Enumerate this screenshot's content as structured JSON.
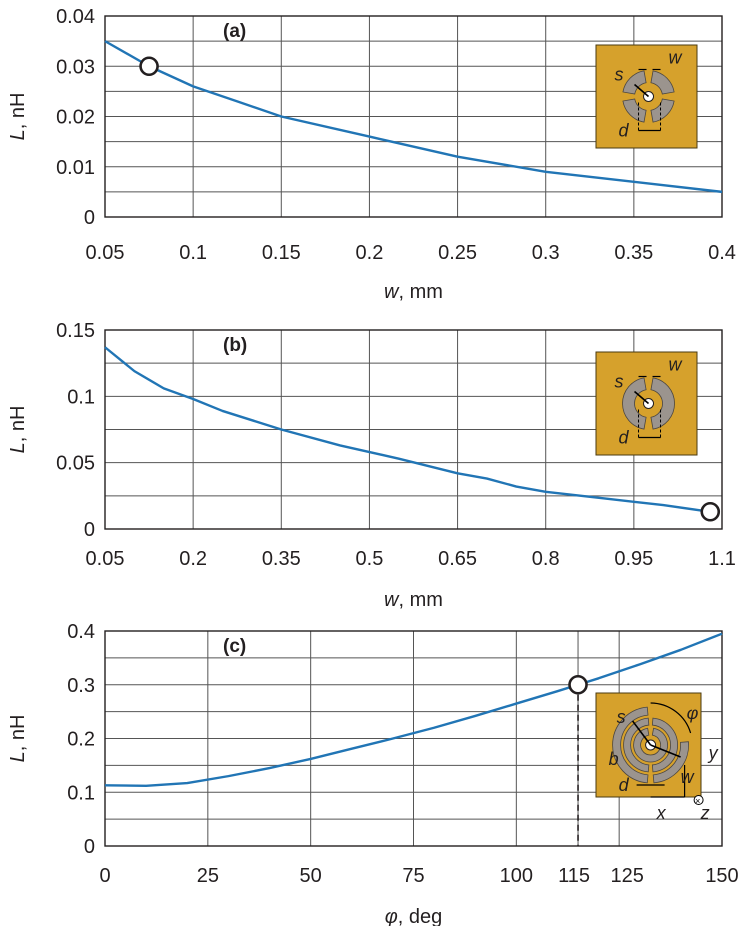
{
  "colors": {
    "line": "#2175b5",
    "grid": "#555555",
    "frame": "#231f20",
    "inset_bg": "#d6a12c",
    "inset_metal": "#9b948e"
  },
  "chart_data": [
    {
      "type": "line",
      "panel_label": "(a)",
      "xlabel_var": "w",
      "xlabel_unit": ", mm",
      "ylabel_var": "L",
      "ylabel_unit": ", nH",
      "xlim": [
        0.05,
        0.4
      ],
      "ylim": [
        0,
        0.04
      ],
      "x_ticks": [
        0.05,
        0.1,
        0.15,
        0.2,
        0.25,
        0.3,
        0.35,
        0.4
      ],
      "x_tick_labels": [
        "0.05",
        "0.1",
        "0.15",
        "0.2",
        "0.25",
        "0.3",
        "0.35",
        "0.4"
      ],
      "y_ticks": [
        0,
        0.01,
        0.02,
        0.03,
        0.04
      ],
      "y_tick_labels": [
        "0",
        "0.01",
        "0.02",
        "0.03",
        "0.04"
      ],
      "grid": true,
      "x": [
        0.05,
        0.075,
        0.1,
        0.125,
        0.15,
        0.2,
        0.25,
        0.3,
        0.35,
        0.4
      ],
      "y": [
        0.035,
        0.03,
        0.026,
        0.023,
        0.02,
        0.016,
        0.012,
        0.009,
        0.007,
        0.005
      ],
      "marker": {
        "x": 0.075,
        "y": 0.03
      },
      "inset_labels": {
        "s": "s",
        "w": "w",
        "d": "d"
      }
    },
    {
      "type": "line",
      "panel_label": "(b)",
      "xlabel_var": "w",
      "xlabel_unit": ", mm",
      "ylabel_var": "L",
      "ylabel_unit": ", nH",
      "xlim": [
        0.05,
        1.1
      ],
      "ylim": [
        0,
        0.15
      ],
      "x_ticks": [
        0.05,
        0.2,
        0.35,
        0.5,
        0.65,
        0.8,
        0.95,
        1.1
      ],
      "x_tick_labels": [
        "0.05",
        "0.2",
        "0.35",
        "0.5",
        "0.65",
        "0.8",
        "0.95",
        "1.1"
      ],
      "y_ticks": [
        0,
        0.05,
        0.1,
        0.15
      ],
      "y_tick_labels": [
        "0",
        "0.05",
        "0.1",
        "0.15"
      ],
      "grid": true,
      "x": [
        0.05,
        0.1,
        0.15,
        0.2,
        0.25,
        0.35,
        0.45,
        0.55,
        0.65,
        0.7,
        0.75,
        0.8,
        0.9,
        1.0,
        1.08
      ],
      "y": [
        0.137,
        0.119,
        0.106,
        0.098,
        0.089,
        0.075,
        0.063,
        0.053,
        0.042,
        0.038,
        0.032,
        0.028,
        0.023,
        0.018,
        0.013
      ],
      "marker": {
        "x": 1.08,
        "y": 0.013
      },
      "inset_labels": {
        "s": "s",
        "w": "w",
        "d": "d"
      }
    },
    {
      "type": "line",
      "panel_label": "(c)",
      "xlabel_var": "φ",
      "xlabel_unit": ", deg",
      "ylabel_var": "L",
      "ylabel_unit": ", nH",
      "xlim": [
        0,
        150
      ],
      "ylim": [
        0,
        0.4
      ],
      "x_ticks": [
        0,
        25,
        50,
        75,
        100,
        115,
        125,
        150
      ],
      "x_tick_labels": [
        "0",
        "25",
        "50",
        "75",
        "100",
        "115",
        "125",
        "150"
      ],
      "y_ticks": [
        0,
        0.1,
        0.2,
        0.3,
        0.4
      ],
      "y_tick_labels": [
        "0",
        "0.1",
        "0.2",
        "0.3",
        "0.4"
      ],
      "grid": true,
      "x": [
        0,
        10,
        20,
        30,
        40,
        50,
        60,
        70,
        80,
        90,
        100,
        110,
        115,
        120,
        130,
        140,
        150
      ],
      "y": [
        0.113,
        0.112,
        0.117,
        0.13,
        0.145,
        0.162,
        0.181,
        0.2,
        0.22,
        0.242,
        0.265,
        0.288,
        0.3,
        0.312,
        0.338,
        0.365,
        0.395
      ],
      "marker": {
        "x": 115,
        "y": 0.3
      },
      "inset_labels": {
        "s": "s",
        "w": "w",
        "d": "d",
        "b": "b",
        "phi": "φ",
        "x": "x",
        "y": "y",
        "z": "z"
      }
    }
  ]
}
